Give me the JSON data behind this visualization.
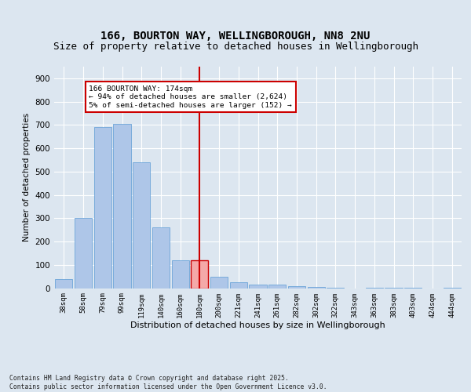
{
  "title_line1": "166, BOURTON WAY, WELLINGBOROUGH, NN8 2NU",
  "title_line2": "Size of property relative to detached houses in Wellingborough",
  "xlabel": "Distribution of detached houses by size in Wellingborough",
  "ylabel": "Number of detached properties",
  "categories": [
    "38sqm",
    "58sqm",
    "79sqm",
    "99sqm",
    "119sqm",
    "140sqm",
    "160sqm",
    "180sqm",
    "200sqm",
    "221sqm",
    "241sqm",
    "261sqm",
    "282sqm",
    "302sqm",
    "322sqm",
    "343sqm",
    "363sqm",
    "383sqm",
    "403sqm",
    "424sqm",
    "444sqm"
  ],
  "values": [
    40,
    300,
    690,
    705,
    540,
    260,
    120,
    120,
    50,
    25,
    16,
    16,
    8,
    5,
    3,
    0,
    3,
    1,
    1,
    0,
    1
  ],
  "highlight_index": 7,
  "bar_color": "#aec6e8",
  "bar_edge_color": "#5b9bd5",
  "highlight_bar_color": "#f4a9a8",
  "highlight_bar_edge_color": "#cc0000",
  "vline_color": "#cc0000",
  "annotation_text": "166 BOURTON WAY: 174sqm\n← 94% of detached houses are smaller (2,624)\n5% of semi-detached houses are larger (152) →",
  "annotation_box_color": "#ffffff",
  "annotation_box_edge_color": "#cc0000",
  "ylim": [
    0,
    950
  ],
  "yticks": [
    0,
    100,
    200,
    300,
    400,
    500,
    600,
    700,
    800,
    900
  ],
  "background_color": "#dce6f0",
  "plot_bg_color": "#dce6f0",
  "footer_text": "Contains HM Land Registry data © Crown copyright and database right 2025.\nContains public sector information licensed under the Open Government Licence v3.0.",
  "title_fontsize": 10,
  "subtitle_fontsize": 9
}
